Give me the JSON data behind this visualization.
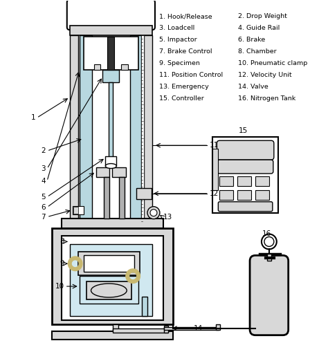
{
  "legend_items": [
    "1. Hook/Release",
    "2. Drop Weight",
    "3. Loadcell",
    "4. Guide Rail",
    "5. Impactor",
    "6. Brake",
    "7. Brake Control",
    "8. Chamber",
    "9. Specimen",
    "10. Pneumatic clamp",
    "11. Position Control",
    "12. Velocity Unit",
    "13. Emergency",
    "14. Valve",
    "15. Controller",
    "16. Nitrogen Tank"
  ],
  "bg_color": "#ffffff",
  "light_blue": "#b8d8e0",
  "light_blue2": "#d0e8f0",
  "gray": "#b0b0b0",
  "light_gray": "#d8d8d8",
  "dark_gray": "#808080",
  "beige": "#c8b870",
  "black": "#000000"
}
